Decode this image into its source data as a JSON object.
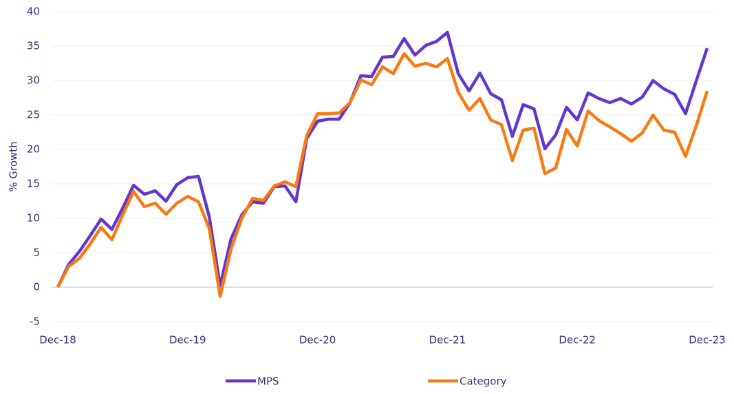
{
  "chart_data": {
    "type": "line",
    "y_label": "% Growth",
    "categories": [
      "Dec-18",
      null,
      null,
      null,
      null,
      null,
      null,
      null,
      null,
      null,
      null,
      null,
      "Dec-19",
      null,
      null,
      null,
      null,
      null,
      null,
      null,
      null,
      null,
      null,
      null,
      "Dec-20",
      null,
      null,
      null,
      null,
      null,
      null,
      null,
      null,
      null,
      null,
      null,
      "Dec-21",
      null,
      null,
      null,
      null,
      null,
      null,
      null,
      null,
      null,
      null,
      null,
      "Dec-22",
      null,
      null,
      null,
      null,
      null,
      null,
      null,
      null,
      null,
      null,
      null,
      "Dec-23"
    ],
    "series": [
      {
        "name": "MPS",
        "color": "#6436d0",
        "values": [
          0,
          3.3,
          5.2,
          7.5,
          9.9,
          8.4,
          11.5,
          14.8,
          13.5,
          14.0,
          12.5,
          14.9,
          15.9,
          16.1,
          10.2,
          0.2,
          7.0,
          10.5,
          12.4,
          12.2,
          14.6,
          14.7,
          12.4,
          21.6,
          24.1,
          24.4,
          24.4,
          26.8,
          30.7,
          30.6,
          33.4,
          33.5,
          36.1,
          33.7,
          35.1,
          35.7,
          37.0,
          31.0,
          28.5,
          31.1,
          28.1,
          27.2,
          21.9,
          26.5,
          25.9,
          20.1,
          22.1,
          26.1,
          24.3,
          28.2,
          27.4,
          26.8,
          27.4,
          26.6,
          27.6,
          30.0,
          28.8,
          28.0,
          25.2,
          30.0,
          34.7
        ]
      },
      {
        "name": "Category",
        "color": "#fa7a10",
        "values": [
          0,
          3.0,
          4.2,
          6.3,
          8.7,
          6.9,
          10.5,
          13.9,
          11.7,
          12.2,
          10.6,
          12.2,
          13.2,
          12.4,
          8.5,
          -1.3,
          5.5,
          10.0,
          12.9,
          12.6,
          14.7,
          15.3,
          14.6,
          22.0,
          25.2,
          25.2,
          25.3,
          26.8,
          30.1,
          29.4,
          32.0,
          31.0,
          33.9,
          32.1,
          32.5,
          32.0,
          33.2,
          28.3,
          25.7,
          27.4,
          24.3,
          23.6,
          18.4,
          22.8,
          23.1,
          16.5,
          17.3,
          22.9,
          20.5,
          25.6,
          24.2,
          23.3,
          22.3,
          21.2,
          22.4,
          25.0,
          22.8,
          22.5,
          19.0,
          23.5,
          28.5
        ]
      }
    ],
    "ylim": [
      -5,
      40
    ],
    "yticks": [
      -5,
      0,
      5,
      10,
      15,
      20,
      25,
      30,
      35,
      40
    ],
    "grid": true,
    "legend": "bottom"
  }
}
